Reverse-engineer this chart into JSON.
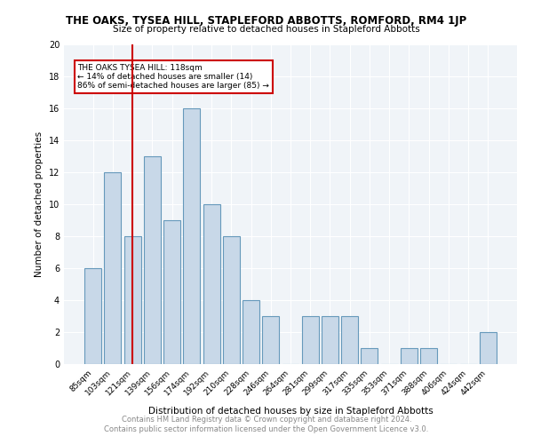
{
  "title": "THE OAKS, TYSEA HILL, STAPLEFORD ABBOTTS, ROMFORD, RM4 1JP",
  "subtitle": "Size of property relative to detached houses in Stapleford Abbotts",
  "xlabel": "Distribution of detached houses by size in Stapleford Abbotts",
  "ylabel": "Number of detached properties",
  "categories": [
    "85sqm",
    "103sqm",
    "121sqm",
    "139sqm",
    "156sqm",
    "174sqm",
    "192sqm",
    "210sqm",
    "228sqm",
    "246sqm",
    "264sqm",
    "281sqm",
    "299sqm",
    "317sqm",
    "335sqm",
    "353sqm",
    "371sqm",
    "388sqm",
    "406sqm",
    "424sqm",
    "442sqm"
  ],
  "values": [
    6,
    12,
    8,
    13,
    9,
    16,
    10,
    8,
    4,
    3,
    0,
    3,
    3,
    3,
    1,
    0,
    1,
    1,
    0,
    0,
    2
  ],
  "bar_color": "#c8d8e8",
  "bar_edge_color": "#6699bb",
  "vline_x": 2,
  "vline_color": "#cc0000",
  "annotation_title": "THE OAKS TYSEA HILL: 118sqm",
  "annotation_line1": "← 14% of detached houses are smaller (14)",
  "annotation_line2": "86% of semi-detached houses are larger (85) →",
  "annotation_box_color": "#cc0000",
  "ylim": [
    0,
    20
  ],
  "yticks": [
    0,
    2,
    4,
    6,
    8,
    10,
    12,
    14,
    16,
    18,
    20
  ],
  "footer_line1": "Contains HM Land Registry data © Crown copyright and database right 2024.",
  "footer_line2": "Contains public sector information licensed under the Open Government Licence v3.0.",
  "background_color": "#f0f4f8",
  "grid_color": "#ffffff"
}
